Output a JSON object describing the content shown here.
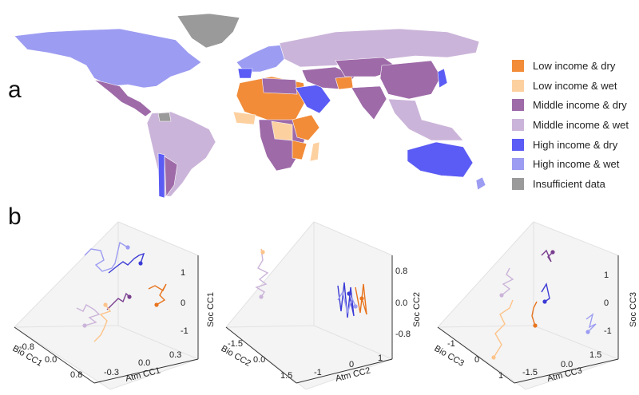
{
  "panels": {
    "a": "a",
    "b": "b"
  },
  "legend": [
    {
      "label": "Low income & dry",
      "color": "#f28c38"
    },
    {
      "label": "Low income & wet",
      "color": "#fdd0a0"
    },
    {
      "label": "Middle income & dry",
      "color": "#9e6aa8"
    },
    {
      "label": "Middle income & wet",
      "color": "#cbb4d9"
    },
    {
      "label": "High income & dry",
      "color": "#5b5bf5"
    },
    {
      "label": "High income & wet",
      "color": "#9c9cf2"
    },
    {
      "label": "Insufficient data",
      "color": "#9a9a9a"
    }
  ],
  "chart_data": [
    {
      "type": "line3d",
      "xlabel": "Bio CC1",
      "ylabel": "Atm CC1",
      "zlabel": "Soc CC1",
      "bio_ticks": [
        "-0.8",
        "0.0",
        "0.8"
      ],
      "atm_ticks": [
        "-0.3",
        "0.0",
        "0.3"
      ],
      "soc_ticks": [
        "-1",
        "0",
        "1"
      ],
      "series": [
        {
          "name": "High income & wet",
          "color": "#9c9cf2"
        },
        {
          "name": "High income & dry",
          "color": "#3b3bd6"
        },
        {
          "name": "Middle income & dry",
          "color": "#7a3f8f"
        },
        {
          "name": "Middle income & wet",
          "color": "#cbb4d9"
        },
        {
          "name": "Low income & dry",
          "color": "#e8741e"
        },
        {
          "name": "Low income & wet",
          "color": "#fdc48a"
        }
      ]
    },
    {
      "type": "line3d",
      "xlabel": "Bio CC2",
      "ylabel": "Atm CC2",
      "zlabel": "Soc CC2",
      "bio_ticks": [
        "-1.5",
        "0.0",
        "1.5"
      ],
      "atm_ticks": [
        "-1",
        "0",
        "1"
      ],
      "soc_ticks": [
        "-0.8",
        "0.0",
        "0.8"
      ],
      "series": [
        {
          "name": "Middle income & wet",
          "color": "#cbb4d9"
        },
        {
          "name": "Low income & wet",
          "color": "#fdc48a"
        },
        {
          "name": "High income & dry",
          "color": "#3b3bd6"
        },
        {
          "name": "High income & wet",
          "color": "#9c9cf2"
        },
        {
          "name": "Low income & dry",
          "color": "#e8741e"
        }
      ]
    },
    {
      "type": "line3d",
      "xlabel": "Bio CC3",
      "ylabel": "Atm CC3",
      "zlabel": "Soc CC3",
      "bio_ticks": [
        "-1",
        "0",
        "1"
      ],
      "atm_ticks": [
        "-1.5",
        "0.0",
        "1.5"
      ],
      "soc_ticks": [
        "-1",
        "0",
        "1"
      ],
      "series": [
        {
          "name": "Middle income & wet",
          "color": "#cbb4d9"
        },
        {
          "name": "Middle income & dry",
          "color": "#7a3f8f"
        },
        {
          "name": "High income & dry",
          "color": "#3b3bd6"
        },
        {
          "name": "Low income & dry",
          "color": "#e8741e"
        },
        {
          "name": "Low income & wet",
          "color": "#fdc48a"
        },
        {
          "name": "High income & wet",
          "color": "#9c9cf2"
        }
      ]
    }
  ]
}
